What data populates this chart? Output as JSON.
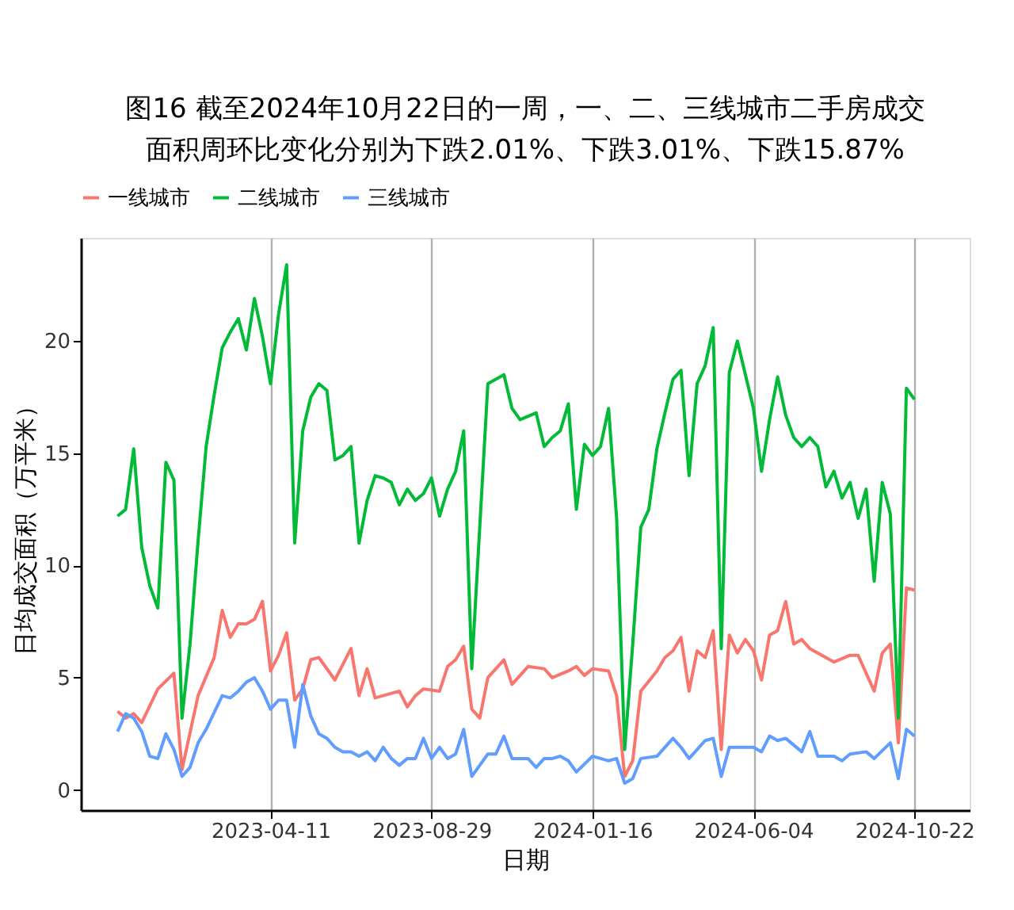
{
  "chart_data": {
    "type": "line",
    "title": "图16  截至2024年10月22日的一周，一、二、三线城市二手房成交面积周环比变化分别为下跌2.01%、下跌3.01%、下跌15.87%",
    "xlabel": "日期",
    "ylabel": "日均成交面积（万平米）",
    "xlim": [
      "2022-10-28",
      "2024-12-09"
    ],
    "xticks": [
      "2023-04-11",
      "2023-08-29",
      "2024-01-16",
      "2024-06-04",
      "2024-10-22"
    ],
    "ylim": [
      -0.9,
      24.6
    ],
    "yticks": [
      0,
      5,
      10,
      15,
      20
    ],
    "grid": "x",
    "legend": "top",
    "marker": "none",
    "line_style": "solid",
    "series": [
      {
        "name": "一线城市",
        "color": "#f8766d",
        "x": [
          "2022-11-29",
          "2022-12-06",
          "2022-12-13",
          "2022-12-20",
          "2023-01-03",
          "2023-01-17",
          "2023-01-24",
          "2023-02-07",
          "2023-02-21",
          "2023-02-28",
          "2023-03-07",
          "2023-03-14",
          "2023-03-21",
          "2023-03-28",
          "2023-04-04",
          "2023-04-11",
          "2023-04-18",
          "2023-04-25",
          "2023-05-02",
          "2023-05-09",
          "2023-05-16",
          "2023-05-23",
          "2023-06-06",
          "2023-06-20",
          "2023-06-27",
          "2023-07-04",
          "2023-07-11",
          "2023-08-01",
          "2023-08-08",
          "2023-08-15",
          "2023-08-22",
          "2023-09-05",
          "2023-09-12",
          "2023-09-19",
          "2023-09-26",
          "2023-10-03",
          "2023-10-10",
          "2023-10-17",
          "2023-10-31",
          "2023-11-07",
          "2023-11-21",
          "2023-12-05",
          "2023-12-12",
          "2023-12-26",
          "2024-01-02",
          "2024-01-09",
          "2024-01-16",
          "2024-01-30",
          "2024-02-06",
          "2024-02-13",
          "2024-02-20",
          "2024-02-27",
          "2024-03-12",
          "2024-03-19",
          "2024-03-26",
          "2024-04-02",
          "2024-04-09",
          "2024-04-16",
          "2024-04-23",
          "2024-04-30",
          "2024-05-07",
          "2024-05-14",
          "2024-05-21",
          "2024-05-28",
          "2024-06-04",
          "2024-06-11",
          "2024-06-18",
          "2024-06-25",
          "2024-07-02",
          "2024-07-09",
          "2024-07-16",
          "2024-07-23",
          "2024-08-06",
          "2024-08-13",
          "2024-08-27",
          "2024-09-03",
          "2024-09-10",
          "2024-09-17",
          "2024-09-24",
          "2024-10-01",
          "2024-10-08",
          "2024-10-15",
          "2024-10-22"
        ],
        "values": [
          3.5,
          3.2,
          3.4,
          3.0,
          4.5,
          5.2,
          0.9,
          4.2,
          5.9,
          8.0,
          6.8,
          7.4,
          7.4,
          7.6,
          8.4,
          5.3,
          6.0,
          7.0,
          4.0,
          4.5,
          5.8,
          5.9,
          4.9,
          6.3,
          4.2,
          5.4,
          4.1,
          4.4,
          3.7,
          4.2,
          4.5,
          4.4,
          5.5,
          5.8,
          6.4,
          3.6,
          3.2,
          5.0,
          5.8,
          4.7,
          5.5,
          5.4,
          5.0,
          5.3,
          5.5,
          5.1,
          5.4,
          5.3,
          4.2,
          0.6,
          1.3,
          4.4,
          5.3,
          5.9,
          6.2,
          6.8,
          4.4,
          6.2,
          5.9,
          7.1,
          1.8,
          6.9,
          6.1,
          6.7,
          6.2,
          4.9,
          6.9,
          7.1,
          8.4,
          6.5,
          6.7,
          6.3,
          5.9,
          5.7,
          6.0,
          6.0,
          5.2,
          4.4,
          6.1,
          6.5,
          2.1,
          9.0,
          8.9
        ]
      },
      {
        "name": "二线城市",
        "color": "#00ba38",
        "x": [
          "2022-11-29",
          "2022-12-06",
          "2022-12-13",
          "2022-12-20",
          "2022-12-27",
          "2023-01-03",
          "2023-01-10",
          "2023-01-17",
          "2023-01-24",
          "2023-01-31",
          "2023-02-07",
          "2023-02-14",
          "2023-02-21",
          "2023-02-28",
          "2023-03-07",
          "2023-03-14",
          "2023-03-21",
          "2023-03-28",
          "2023-04-04",
          "2023-04-11",
          "2023-04-18",
          "2023-04-25",
          "2023-05-02",
          "2023-05-09",
          "2023-05-16",
          "2023-05-23",
          "2023-05-30",
          "2023-06-06",
          "2023-06-13",
          "2023-06-20",
          "2023-06-27",
          "2023-07-04",
          "2023-07-11",
          "2023-07-18",
          "2023-07-25",
          "2023-08-01",
          "2023-08-08",
          "2023-08-15",
          "2023-08-22",
          "2023-08-29",
          "2023-09-05",
          "2023-09-12",
          "2023-09-19",
          "2023-09-26",
          "2023-10-03",
          "2023-10-17",
          "2023-10-31",
          "2023-11-07",
          "2023-11-14",
          "2023-11-28",
          "2023-12-05",
          "2023-12-12",
          "2023-12-19",
          "2023-12-26",
          "2024-01-02",
          "2024-01-09",
          "2024-01-16",
          "2024-01-23",
          "2024-01-30",
          "2024-02-06",
          "2024-02-13",
          "2024-02-20",
          "2024-02-27",
          "2024-03-05",
          "2024-03-12",
          "2024-03-19",
          "2024-03-26",
          "2024-04-02",
          "2024-04-09",
          "2024-04-16",
          "2024-04-23",
          "2024-04-30",
          "2024-05-07",
          "2024-05-14",
          "2024-05-21",
          "2024-05-28",
          "2024-06-04",
          "2024-06-11",
          "2024-06-18",
          "2024-06-25",
          "2024-07-02",
          "2024-07-09",
          "2024-07-16",
          "2024-07-23",
          "2024-07-30",
          "2024-08-06",
          "2024-08-13",
          "2024-08-20",
          "2024-08-27",
          "2024-09-03",
          "2024-09-10",
          "2024-09-17",
          "2024-09-24",
          "2024-10-01",
          "2024-10-08",
          "2024-10-15",
          "2024-10-22"
        ],
        "values": [
          12.2,
          12.5,
          15.2,
          10.8,
          9.1,
          8.1,
          14.6,
          13.8,
          3.2,
          6.5,
          11.1,
          15.3,
          17.6,
          19.7,
          20.4,
          21.0,
          19.6,
          21.9,
          20.2,
          18.1,
          21.2,
          23.4,
          11.0,
          16.0,
          17.5,
          18.1,
          17.8,
          14.7,
          14.9,
          15.3,
          11.0,
          12.9,
          14.0,
          13.9,
          13.7,
          12.7,
          13.4,
          12.9,
          13.2,
          13.9,
          12.2,
          13.4,
          14.2,
          16.0,
          5.4,
          18.1,
          18.5,
          17.0,
          16.5,
          16.8,
          15.3,
          15.7,
          16.0,
          17.2,
          12.5,
          15.4,
          14.9,
          15.3,
          17.0,
          12.1,
          1.8,
          6.5,
          11.7,
          12.5,
          15.2,
          16.8,
          18.3,
          18.7,
          14.0,
          18.1,
          18.9,
          20.6,
          6.3,
          18.6,
          20.0,
          18.5,
          17.0,
          14.2,
          16.5,
          18.4,
          16.7,
          15.7,
          15.3,
          15.7,
          15.3,
          13.5,
          14.2,
          13.0,
          13.7,
          12.1,
          13.4,
          9.3,
          13.7,
          12.3,
          3.2,
          17.9,
          17.4
        ]
      },
      {
        "name": "三线城市",
        "color": "#619cff",
        "x": [
          "2022-11-29",
          "2022-12-06",
          "2022-12-13",
          "2022-12-20",
          "2022-12-27",
          "2023-01-03",
          "2023-01-10",
          "2023-01-17",
          "2023-01-24",
          "2023-01-31",
          "2023-02-07",
          "2023-02-14",
          "2023-02-28",
          "2023-03-07",
          "2023-03-14",
          "2023-03-21",
          "2023-03-28",
          "2023-04-04",
          "2023-04-11",
          "2023-04-18",
          "2023-04-25",
          "2023-05-02",
          "2023-05-09",
          "2023-05-16",
          "2023-05-23",
          "2023-05-30",
          "2023-06-06",
          "2023-06-13",
          "2023-06-20",
          "2023-06-27",
          "2023-07-04",
          "2023-07-11",
          "2023-07-18",
          "2023-07-25",
          "2023-08-01",
          "2023-08-08",
          "2023-08-15",
          "2023-08-22",
          "2023-08-29",
          "2023-09-05",
          "2023-09-12",
          "2023-09-19",
          "2023-09-26",
          "2023-10-03",
          "2023-10-10",
          "2023-10-17",
          "2023-10-24",
          "2023-10-31",
          "2023-11-07",
          "2023-11-21",
          "2023-11-28",
          "2023-12-05",
          "2023-12-12",
          "2023-12-19",
          "2023-12-26",
          "2024-01-02",
          "2024-01-16",
          "2024-01-30",
          "2024-02-06",
          "2024-02-13",
          "2024-02-20",
          "2024-02-27",
          "2024-03-12",
          "2024-03-26",
          "2024-04-02",
          "2024-04-09",
          "2024-04-23",
          "2024-04-30",
          "2024-05-07",
          "2024-05-14",
          "2024-05-28",
          "2024-06-04",
          "2024-06-11",
          "2024-06-18",
          "2024-06-25",
          "2024-07-02",
          "2024-07-16",
          "2024-07-23",
          "2024-07-30",
          "2024-08-13",
          "2024-08-20",
          "2024-08-27",
          "2024-09-10",
          "2024-09-17",
          "2024-10-01",
          "2024-10-08",
          "2024-10-15",
          "2024-10-22"
        ],
        "values": [
          2.6,
          3.4,
          3.2,
          2.6,
          1.5,
          1.4,
          2.5,
          1.8,
          0.6,
          1.0,
          2.1,
          2.7,
          4.2,
          4.1,
          4.4,
          4.8,
          5.0,
          4.4,
          3.6,
          4.0,
          4.0,
          1.9,
          4.7,
          3.3,
          2.5,
          2.3,
          1.9,
          1.7,
          1.7,
          1.5,
          1.7,
          1.3,
          1.9,
          1.4,
          1.1,
          1.4,
          1.4,
          2.3,
          1.4,
          1.9,
          1.4,
          1.6,
          2.7,
          0.6,
          1.1,
          1.6,
          1.6,
          2.4,
          1.4,
          1.4,
          1.0,
          1.4,
          1.4,
          1.5,
          1.3,
          0.8,
          1.5,
          1.3,
          1.4,
          0.3,
          0.5,
          1.4,
          1.5,
          2.3,
          1.9,
          1.4,
          2.2,
          2.3,
          0.6,
          1.9,
          1.9,
          1.9,
          1.7,
          2.4,
          2.2,
          2.3,
          1.7,
          2.6,
          1.5,
          1.5,
          1.3,
          1.6,
          1.7,
          1.4,
          2.1,
          0.5,
          2.7,
          2.4
        ]
      }
    ]
  }
}
